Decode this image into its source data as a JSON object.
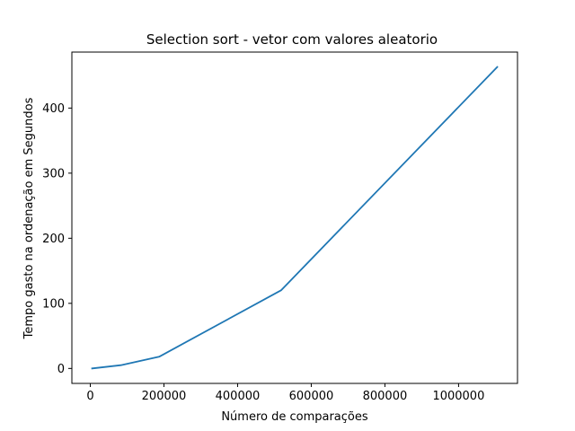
{
  "chart_data": {
    "type": "line",
    "title": "Selection sort - vetor com valores aleatorio",
    "xlabel": "Número de comparações",
    "ylabel": "Tempo gasto na ordenação  em Segundos",
    "x": [
      5000,
      83000,
      187000,
      518000,
      1105000
    ],
    "series": [
      {
        "values": [
          0,
          5,
          18,
          120,
          463
        ]
      }
    ],
    "xlim": [
      -50000,
      1160000
    ],
    "ylim": [
      -23,
      486
    ],
    "xticks": [
      0,
      200000,
      400000,
      600000,
      800000,
      1000000
    ],
    "xtick_labels": [
      "0",
      "200000",
      "400000",
      "600000",
      "800000",
      "1000000"
    ],
    "yticks": [
      0,
      100,
      200,
      300,
      400
    ],
    "ytick_labels": [
      "0",
      "100",
      "200",
      "300",
      "400"
    ],
    "grid": false,
    "legend": "none",
    "line_color": "#1f77b4"
  }
}
